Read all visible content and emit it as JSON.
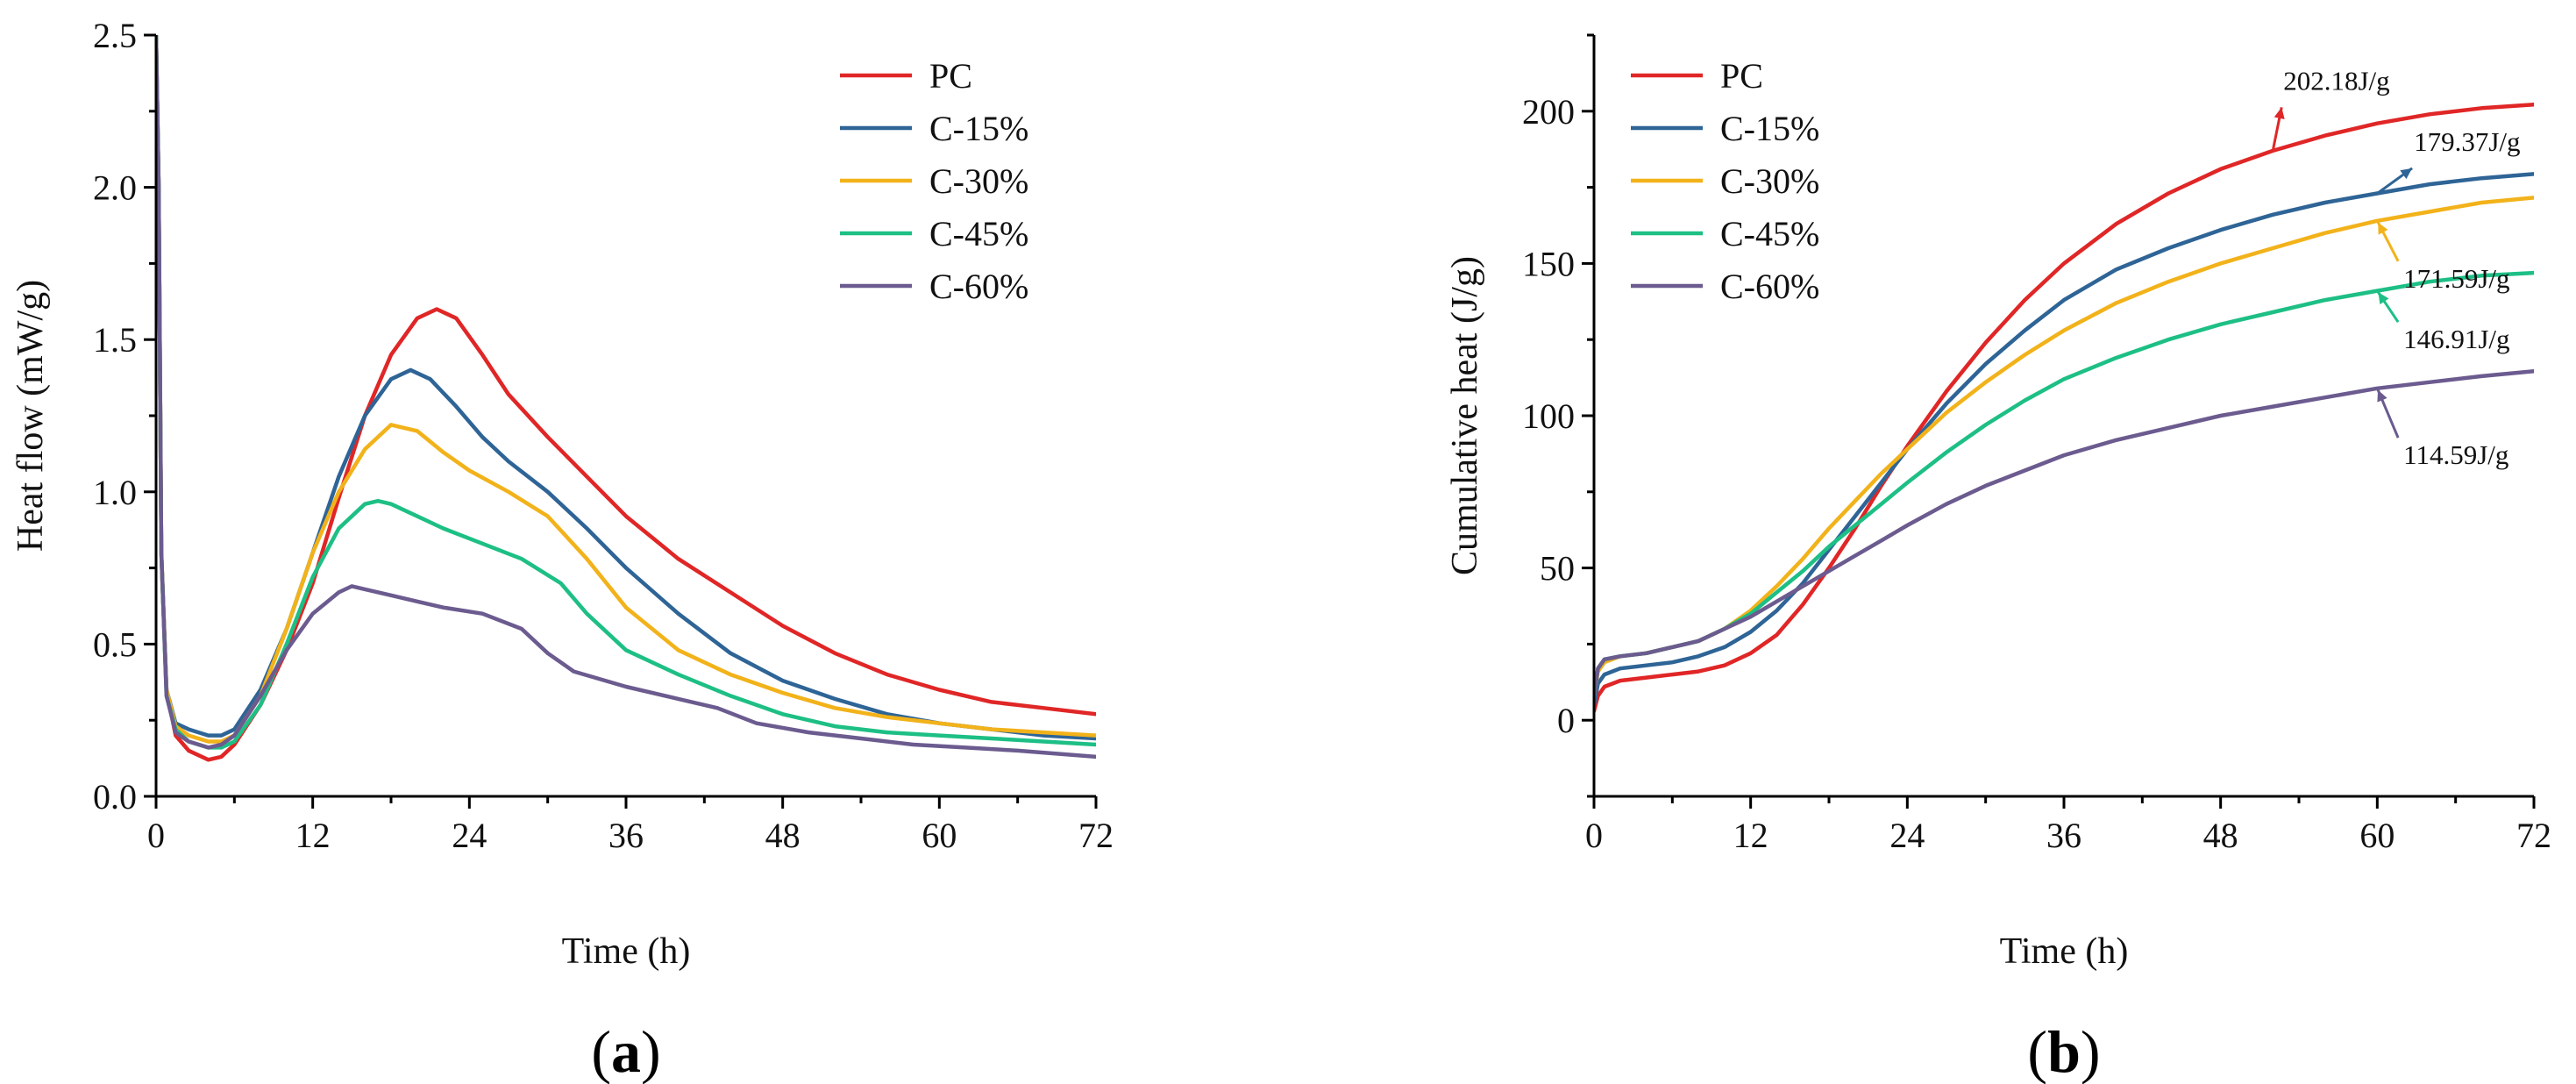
{
  "chart_data": [
    {
      "type": "line",
      "panel": "a",
      "panel_label": "a",
      "xlabel": "Time (h)",
      "ylabel": "Heat flow (mW/g)",
      "xlim": [
        0,
        72
      ],
      "ylim": [
        0,
        2.5
      ],
      "xticks": [
        "0",
        "12",
        "24",
        "36",
        "48",
        "60",
        "72"
      ],
      "yticks": [
        "0.0",
        "0.5",
        "1.0",
        "1.5",
        "2.0",
        "2.5"
      ],
      "xtick_values": [
        0,
        12,
        24,
        36,
        48,
        60,
        72
      ],
      "ytick_values": [
        0,
        0.5,
        1.0,
        1.5,
        2.0,
        2.5
      ],
      "legend_position": "top-right",
      "series": [
        {
          "name": "PC",
          "color": "#e02626",
          "x": [
            0,
            0.2,
            0.4,
            0.8,
            1.5,
            2.5,
            4,
            5,
            6,
            8,
            10,
            12,
            14,
            16,
            18,
            20,
            21.5,
            23,
            25,
            27,
            30,
            33,
            36,
            40,
            44,
            48,
            52,
            56,
            60,
            64,
            68,
            72
          ],
          "y": [
            2.5,
            2.0,
            0.8,
            0.35,
            0.2,
            0.15,
            0.12,
            0.13,
            0.17,
            0.3,
            0.48,
            0.7,
            0.98,
            1.25,
            1.45,
            1.57,
            1.6,
            1.57,
            1.45,
            1.32,
            1.18,
            1.05,
            0.92,
            0.78,
            0.67,
            0.56,
            0.47,
            0.4,
            0.35,
            0.31,
            0.29,
            0.27
          ]
        },
        {
          "name": "C-15%",
          "color": "#2e6496",
          "x": [
            0,
            0.2,
            0.4,
            0.8,
            1.5,
            2.5,
            4,
            5,
            6,
            8,
            10,
            12,
            14,
            16,
            18,
            19.5,
            21,
            23,
            25,
            27,
            30,
            33,
            36,
            40,
            44,
            48,
            52,
            56,
            60,
            64,
            68,
            72
          ],
          "y": [
            2.5,
            2.0,
            0.8,
            0.35,
            0.24,
            0.22,
            0.2,
            0.2,
            0.22,
            0.35,
            0.55,
            0.8,
            1.05,
            1.25,
            1.37,
            1.4,
            1.37,
            1.28,
            1.18,
            1.1,
            1.0,
            0.88,
            0.75,
            0.6,
            0.47,
            0.38,
            0.32,
            0.27,
            0.24,
            0.22,
            0.2,
            0.19
          ]
        },
        {
          "name": "C-30%",
          "color": "#f2b21a",
          "x": [
            0,
            0.2,
            0.4,
            0.8,
            1.5,
            2.5,
            4,
            5,
            6,
            8,
            10,
            12,
            14,
            16,
            18,
            20,
            22,
            24,
            27,
            30,
            33,
            36,
            40,
            44,
            48,
            52,
            56,
            60,
            64,
            68,
            72
          ],
          "y": [
            2.5,
            2.0,
            0.8,
            0.35,
            0.23,
            0.2,
            0.18,
            0.18,
            0.2,
            0.33,
            0.55,
            0.8,
            1.0,
            1.14,
            1.22,
            1.2,
            1.13,
            1.07,
            1.0,
            0.92,
            0.78,
            0.62,
            0.48,
            0.4,
            0.34,
            0.29,
            0.26,
            0.24,
            0.22,
            0.21,
            0.2
          ]
        },
        {
          "name": "C-45%",
          "color": "#1dbf85",
          "x": [
            0,
            0.2,
            0.4,
            0.8,
            1.5,
            2.5,
            4,
            5,
            6,
            8,
            10,
            12,
            14,
            16,
            17,
            18,
            20,
            22,
            25,
            28,
            31,
            33,
            36,
            40,
            44,
            48,
            52,
            56,
            60,
            64,
            68,
            72
          ],
          "y": [
            2.5,
            2.0,
            0.8,
            0.33,
            0.22,
            0.18,
            0.16,
            0.16,
            0.18,
            0.3,
            0.5,
            0.72,
            0.88,
            0.96,
            0.97,
            0.96,
            0.92,
            0.88,
            0.83,
            0.78,
            0.7,
            0.6,
            0.48,
            0.4,
            0.33,
            0.27,
            0.23,
            0.21,
            0.2,
            0.19,
            0.18,
            0.17
          ]
        },
        {
          "name": "C-60%",
          "color": "#6b5b8f",
          "x": [
            0,
            0.2,
            0.4,
            0.8,
            1.5,
            2.5,
            4,
            5,
            6,
            8,
            10,
            12,
            14,
            15,
            16,
            18,
            20,
            22,
            25,
            28,
            30,
            32,
            36,
            40,
            43,
            46,
            50,
            54,
            58,
            62,
            66,
            72
          ],
          "y": [
            2.5,
            2.0,
            0.8,
            0.33,
            0.21,
            0.18,
            0.16,
            0.17,
            0.2,
            0.33,
            0.48,
            0.6,
            0.67,
            0.69,
            0.68,
            0.66,
            0.64,
            0.62,
            0.6,
            0.55,
            0.47,
            0.41,
            0.36,
            0.32,
            0.29,
            0.24,
            0.21,
            0.19,
            0.17,
            0.16,
            0.15,
            0.13
          ]
        }
      ]
    },
    {
      "type": "line",
      "panel": "b",
      "panel_label": "b",
      "xlabel": "Time (h)",
      "ylabel": "Cumulative heat (J/g)",
      "xlim": [
        0,
        72
      ],
      "ylim": [
        -25,
        225
      ],
      "xticks": [
        "0",
        "12",
        "24",
        "36",
        "48",
        "60",
        "72"
      ],
      "yticks": [
        "0",
        "50",
        "100",
        "150",
        "200"
      ],
      "xtick_values": [
        0,
        12,
        24,
        36,
        48,
        60,
        72
      ],
      "ytick_values": [
        0,
        50,
        100,
        150,
        200
      ],
      "legend_position": "top-left",
      "series": [
        {
          "name": "PC",
          "color": "#e02626",
          "x": [
            0,
            0.3,
            0.8,
            2,
            4,
            6,
            8,
            10,
            12,
            14,
            16,
            18,
            20,
            22,
            24,
            27,
            30,
            33,
            36,
            40,
            44,
            48,
            52,
            56,
            60,
            64,
            68,
            72
          ],
          "y": [
            3,
            8,
            11,
            13,
            14,
            15,
            16,
            18,
            22,
            28,
            38,
            50,
            63,
            77,
            90,
            108,
            124,
            138,
            150,
            163,
            173,
            181,
            187,
            192,
            196,
            199,
            201,
            202.18
          ]
        },
        {
          "name": "C-15%",
          "color": "#2e6496",
          "x": [
            0,
            0.3,
            0.8,
            2,
            4,
            6,
            8,
            10,
            12,
            14,
            16,
            18,
            20,
            22,
            24,
            27,
            30,
            33,
            36,
            40,
            44,
            48,
            52,
            56,
            60,
            64,
            68,
            72
          ],
          "y": [
            5,
            12,
            15,
            17,
            18,
            19,
            21,
            24,
            29,
            36,
            45,
            56,
            67,
            78,
            89,
            104,
            117,
            128,
            138,
            148,
            155,
            161,
            166,
            170,
            173,
            176,
            178,
            179.37
          ]
        },
        {
          "name": "C-30%",
          "color": "#f2b21a",
          "x": [
            0,
            0.3,
            0.8,
            2,
            4,
            6,
            8,
            10,
            12,
            14,
            16,
            18,
            20,
            22,
            24,
            27,
            30,
            33,
            36,
            40,
            44,
            48,
            52,
            56,
            60,
            64,
            68,
            72
          ],
          "y": [
            8,
            16,
            19,
            21,
            22,
            24,
            26,
            30,
            36,
            44,
            53,
            63,
            72,
            81,
            89,
            101,
            111,
            120,
            128,
            137,
            144,
            150,
            155,
            160,
            164,
            167,
            170,
            171.59
          ]
        },
        {
          "name": "C-45%",
          "color": "#1dbf85",
          "x": [
            0,
            0.3,
            0.8,
            2,
            4,
            6,
            8,
            10,
            12,
            14,
            16,
            18,
            20,
            22,
            24,
            27,
            30,
            33,
            36,
            40,
            44,
            48,
            52,
            56,
            60,
            64,
            68,
            72
          ],
          "y": [
            8,
            17,
            20,
            21,
            22,
            24,
            26,
            30,
            35,
            42,
            49,
            57,
            64,
            71,
            78,
            88,
            97,
            105,
            112,
            119,
            125,
            130,
            134,
            138,
            141,
            144,
            146,
            146.91
          ]
        },
        {
          "name": "C-60%",
          "color": "#6b5b8f",
          "x": [
            0,
            0.3,
            0.8,
            2,
            4,
            6,
            8,
            10,
            12,
            14,
            16,
            18,
            20,
            22,
            24,
            27,
            30,
            33,
            36,
            40,
            44,
            48,
            52,
            56,
            60,
            64,
            68,
            72
          ],
          "y": [
            8,
            17,
            20,
            21,
            22,
            24,
            26,
            30,
            34,
            39,
            44,
            49,
            54,
            59,
            64,
            71,
            77,
            82,
            87,
            92,
            96,
            100,
            103,
            106,
            109,
            111,
            113,
            114.59
          ]
        }
      ],
      "annotations": [
        {
          "text": "202.18J/g",
          "series": "PC",
          "color": "#e02626",
          "x": 52,
          "y": 203
        },
        {
          "text": "179.37J/g",
          "series": "C-15%",
          "color": "#2e6496",
          "x": 62,
          "y": 183
        },
        {
          "text": "171.59J/g",
          "series": "C-30%",
          "color": "#f2b21a",
          "x": 62,
          "y": 145
        },
        {
          "text": "146.91J/g",
          "series": "C-45%",
          "color": "#1dbf85",
          "x": 62,
          "y": 125
        },
        {
          "text": "114.59J/g",
          "series": "C-60%",
          "color": "#6b5b8f",
          "x": 62,
          "y": 87
        }
      ]
    }
  ]
}
